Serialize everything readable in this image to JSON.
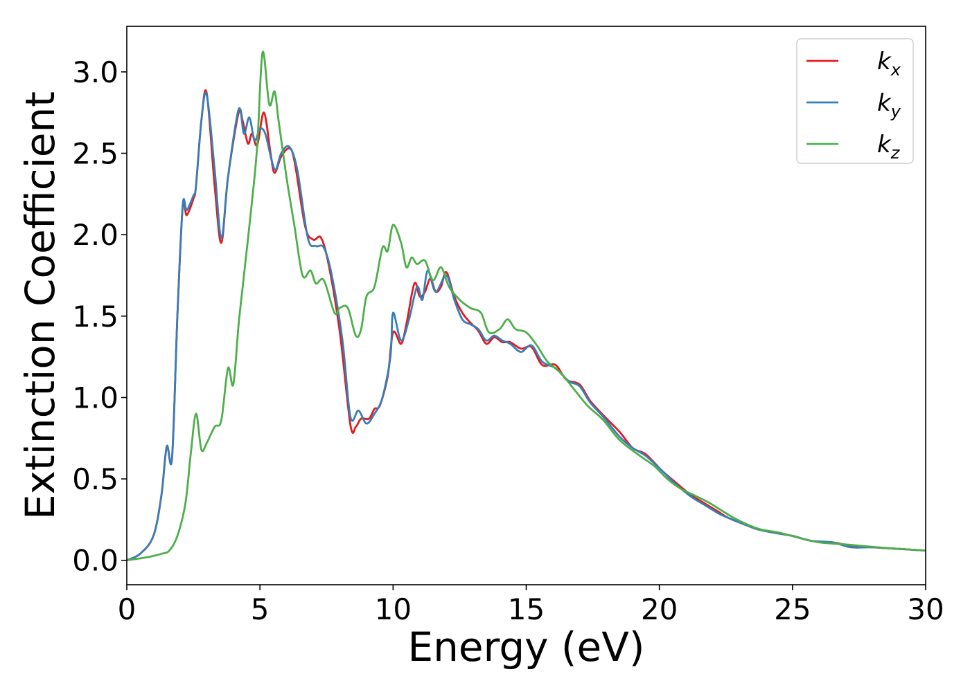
{
  "chart_data": {
    "type": "line",
    "xlabel": "Energy (eV)",
    "ylabel": "Extinction Coefficient",
    "xlim": [
      0,
      30
    ],
    "ylim": [
      -0.15,
      3.28
    ],
    "xticks": [
      0,
      5,
      10,
      15,
      20,
      25,
      30
    ],
    "yticks": [
      0.0,
      0.5,
      1.0,
      1.5,
      2.0,
      2.5,
      3.0
    ],
    "xtick_labels": [
      "0",
      "5",
      "10",
      "15",
      "20",
      "25",
      "30"
    ],
    "ytick_labels": [
      "0.0",
      "0.5",
      "1.0",
      "1.5",
      "2.0",
      "2.5",
      "3.0"
    ],
    "grid": false,
    "legend_position": "top-right",
    "series": [
      {
        "name": "k_x",
        "color": "#e41a1c",
        "points": [
          [
            0,
            0
          ],
          [
            0.5,
            0.04
          ],
          [
            1.0,
            0.15
          ],
          [
            1.3,
            0.4
          ],
          [
            1.5,
            0.7
          ],
          [
            1.7,
            0.63
          ],
          [
            1.9,
            1.5
          ],
          [
            2.1,
            2.17
          ],
          [
            2.25,
            2.12
          ],
          [
            2.5,
            2.22
          ],
          [
            2.6,
            2.3
          ],
          [
            2.8,
            2.7
          ],
          [
            3.0,
            2.87
          ],
          [
            3.3,
            2.3
          ],
          [
            3.55,
            1.95
          ],
          [
            3.8,
            2.35
          ],
          [
            4.2,
            2.75
          ],
          [
            4.35,
            2.7
          ],
          [
            4.55,
            2.56
          ],
          [
            4.7,
            2.62
          ],
          [
            4.9,
            2.55
          ],
          [
            5.15,
            2.75
          ],
          [
            5.4,
            2.5
          ],
          [
            5.55,
            2.38
          ],
          [
            5.8,
            2.48
          ],
          [
            6.1,
            2.53
          ],
          [
            6.3,
            2.45
          ],
          [
            6.7,
            2.05
          ],
          [
            7.0,
            1.97
          ],
          [
            7.3,
            1.98
          ],
          [
            7.6,
            1.8
          ],
          [
            8.0,
            1.4
          ],
          [
            8.4,
            0.83
          ],
          [
            8.6,
            0.82
          ],
          [
            8.8,
            0.87
          ],
          [
            9.1,
            0.87
          ],
          [
            9.3,
            0.93
          ],
          [
            9.5,
            0.95
          ],
          [
            9.8,
            1.13
          ],
          [
            10.0,
            1.4
          ],
          [
            10.3,
            1.33
          ],
          [
            10.5,
            1.45
          ],
          [
            10.8,
            1.7
          ],
          [
            11.0,
            1.62
          ],
          [
            11.2,
            1.65
          ],
          [
            11.4,
            1.73
          ],
          [
            11.6,
            1.65
          ],
          [
            11.8,
            1.68
          ],
          [
            12.0,
            1.77
          ],
          [
            12.3,
            1.62
          ],
          [
            12.6,
            1.52
          ],
          [
            12.9,
            1.46
          ],
          [
            13.2,
            1.41
          ],
          [
            13.5,
            1.33
          ],
          [
            13.8,
            1.37
          ],
          [
            14.1,
            1.34
          ],
          [
            14.4,
            1.34
          ],
          [
            14.8,
            1.3
          ],
          [
            15.2,
            1.31
          ],
          [
            15.6,
            1.2
          ],
          [
            16.1,
            1.2
          ],
          [
            16.5,
            1.11
          ],
          [
            17.0,
            1.08
          ],
          [
            17.4,
            0.98
          ],
          [
            17.9,
            0.89
          ],
          [
            18.5,
            0.79
          ],
          [
            19.0,
            0.69
          ],
          [
            19.5,
            0.65
          ],
          [
            20.1,
            0.55
          ],
          [
            20.6,
            0.48
          ],
          [
            21.2,
            0.4
          ],
          [
            21.7,
            0.35
          ],
          [
            22.2,
            0.3
          ],
          [
            22.6,
            0.26
          ],
          [
            23.2,
            0.22
          ],
          [
            23.7,
            0.19
          ],
          [
            24.3,
            0.17
          ],
          [
            25.0,
            0.15
          ],
          [
            25.7,
            0.12
          ],
          [
            26.5,
            0.11
          ],
          [
            27.2,
            0.09
          ],
          [
            28.0,
            0.08
          ],
          [
            29.0,
            0.07
          ],
          [
            30,
            0.06
          ]
        ]
      },
      {
        "name": "k_y",
        "color": "#377eb8",
        "points": [
          [
            0,
            0
          ],
          [
            0.5,
            0.04
          ],
          [
            1.0,
            0.15
          ],
          [
            1.3,
            0.4
          ],
          [
            1.5,
            0.7
          ],
          [
            1.7,
            0.63
          ],
          [
            1.9,
            1.5
          ],
          [
            2.1,
            2.18
          ],
          [
            2.25,
            2.15
          ],
          [
            2.5,
            2.24
          ],
          [
            2.6,
            2.3
          ],
          [
            2.8,
            2.7
          ],
          [
            3.0,
            2.86
          ],
          [
            3.3,
            2.4
          ],
          [
            3.55,
            1.98
          ],
          [
            3.8,
            2.35
          ],
          [
            4.2,
            2.77
          ],
          [
            4.4,
            2.62
          ],
          [
            4.6,
            2.72
          ],
          [
            4.8,
            2.58
          ],
          [
            5.0,
            2.65
          ],
          [
            5.2,
            2.62
          ],
          [
            5.45,
            2.45
          ],
          [
            5.6,
            2.4
          ],
          [
            5.8,
            2.5
          ],
          [
            6.1,
            2.54
          ],
          [
            6.4,
            2.4
          ],
          [
            6.8,
            1.98
          ],
          [
            7.1,
            1.93
          ],
          [
            7.4,
            1.92
          ],
          [
            7.7,
            1.75
          ],
          [
            8.1,
            1.35
          ],
          [
            8.4,
            0.88
          ],
          [
            8.7,
            0.92
          ],
          [
            9.0,
            0.84
          ],
          [
            9.3,
            0.9
          ],
          [
            9.6,
            1.0
          ],
          [
            9.9,
            1.25
          ],
          [
            10.0,
            1.52
          ],
          [
            10.3,
            1.35
          ],
          [
            10.6,
            1.48
          ],
          [
            10.9,
            1.68
          ],
          [
            11.1,
            1.6
          ],
          [
            11.3,
            1.78
          ],
          [
            11.6,
            1.65
          ],
          [
            12.0,
            1.75
          ],
          [
            12.3,
            1.6
          ],
          [
            12.6,
            1.48
          ],
          [
            12.9,
            1.45
          ],
          [
            13.2,
            1.42
          ],
          [
            13.5,
            1.35
          ],
          [
            13.8,
            1.38
          ],
          [
            14.1,
            1.35
          ],
          [
            14.4,
            1.33
          ],
          [
            14.8,
            1.28
          ],
          [
            15.2,
            1.32
          ],
          [
            15.6,
            1.22
          ],
          [
            16.1,
            1.18
          ],
          [
            16.6,
            1.1
          ],
          [
            17.0,
            1.07
          ],
          [
            17.4,
            0.97
          ],
          [
            17.9,
            0.88
          ],
          [
            18.5,
            0.76
          ],
          [
            19.0,
            0.69
          ],
          [
            19.5,
            0.64
          ],
          [
            20.1,
            0.55
          ],
          [
            20.6,
            0.47
          ],
          [
            21.2,
            0.39
          ],
          [
            21.7,
            0.34
          ],
          [
            22.2,
            0.29
          ],
          [
            22.6,
            0.26
          ],
          [
            23.2,
            0.22
          ],
          [
            23.7,
            0.19
          ],
          [
            24.3,
            0.17
          ],
          [
            25.0,
            0.15
          ],
          [
            25.7,
            0.12
          ],
          [
            26.5,
            0.11
          ],
          [
            27.2,
            0.08
          ],
          [
            28.0,
            0.08
          ],
          [
            29.0,
            0.07
          ],
          [
            30,
            0.06
          ]
        ]
      },
      {
        "name": "k_z",
        "color": "#4daf4a",
        "points": [
          [
            0,
            0
          ],
          [
            0.8,
            0.02
          ],
          [
            1.3,
            0.04
          ],
          [
            1.6,
            0.06
          ],
          [
            1.9,
            0.15
          ],
          [
            2.2,
            0.35
          ],
          [
            2.4,
            0.65
          ],
          [
            2.6,
            0.9
          ],
          [
            2.8,
            0.68
          ],
          [
            3.0,
            0.72
          ],
          [
            3.3,
            0.82
          ],
          [
            3.55,
            0.86
          ],
          [
            3.8,
            1.18
          ],
          [
            4.0,
            1.08
          ],
          [
            4.2,
            1.45
          ],
          [
            4.4,
            1.75
          ],
          [
            4.7,
            2.2
          ],
          [
            4.9,
            2.55
          ],
          [
            5.1,
            3.12
          ],
          [
            5.35,
            2.8
          ],
          [
            5.55,
            2.88
          ],
          [
            5.7,
            2.7
          ],
          [
            6.0,
            2.35
          ],
          [
            6.3,
            2.05
          ],
          [
            6.6,
            1.75
          ],
          [
            6.9,
            1.78
          ],
          [
            7.1,
            1.7
          ],
          [
            7.4,
            1.72
          ],
          [
            7.8,
            1.52
          ],
          [
            8.0,
            1.55
          ],
          [
            8.3,
            1.55
          ],
          [
            8.6,
            1.38
          ],
          [
            8.8,
            1.42
          ],
          [
            9.0,
            1.62
          ],
          [
            9.3,
            1.68
          ],
          [
            9.6,
            1.92
          ],
          [
            9.8,
            1.9
          ],
          [
            10.0,
            2.06
          ],
          [
            10.3,
            1.95
          ],
          [
            10.5,
            1.8
          ],
          [
            10.7,
            1.86
          ],
          [
            10.9,
            1.82
          ],
          [
            11.2,
            1.84
          ],
          [
            11.5,
            1.72
          ],
          [
            11.8,
            1.8
          ],
          [
            12.1,
            1.68
          ],
          [
            12.5,
            1.6
          ],
          [
            12.9,
            1.55
          ],
          [
            13.3,
            1.52
          ],
          [
            13.6,
            1.4
          ],
          [
            14.0,
            1.42
          ],
          [
            14.3,
            1.48
          ],
          [
            14.6,
            1.42
          ],
          [
            15.0,
            1.4
          ],
          [
            15.4,
            1.32
          ],
          [
            15.8,
            1.22
          ],
          [
            16.3,
            1.15
          ],
          [
            16.8,
            1.05
          ],
          [
            17.3,
            0.95
          ],
          [
            17.9,
            0.86
          ],
          [
            18.5,
            0.74
          ],
          [
            19.2,
            0.65
          ],
          [
            19.8,
            0.58
          ],
          [
            20.3,
            0.5
          ],
          [
            20.8,
            0.44
          ],
          [
            21.3,
            0.4
          ],
          [
            21.8,
            0.36
          ],
          [
            22.3,
            0.31
          ],
          [
            22.8,
            0.26
          ],
          [
            23.3,
            0.22
          ],
          [
            23.8,
            0.19
          ],
          [
            24.5,
            0.17
          ],
          [
            25.2,
            0.14
          ],
          [
            26.0,
            0.11
          ],
          [
            26.8,
            0.1
          ],
          [
            27.5,
            0.09
          ],
          [
            28.2,
            0.08
          ],
          [
            29.0,
            0.07
          ],
          [
            30,
            0.06
          ]
        ]
      }
    ]
  }
}
